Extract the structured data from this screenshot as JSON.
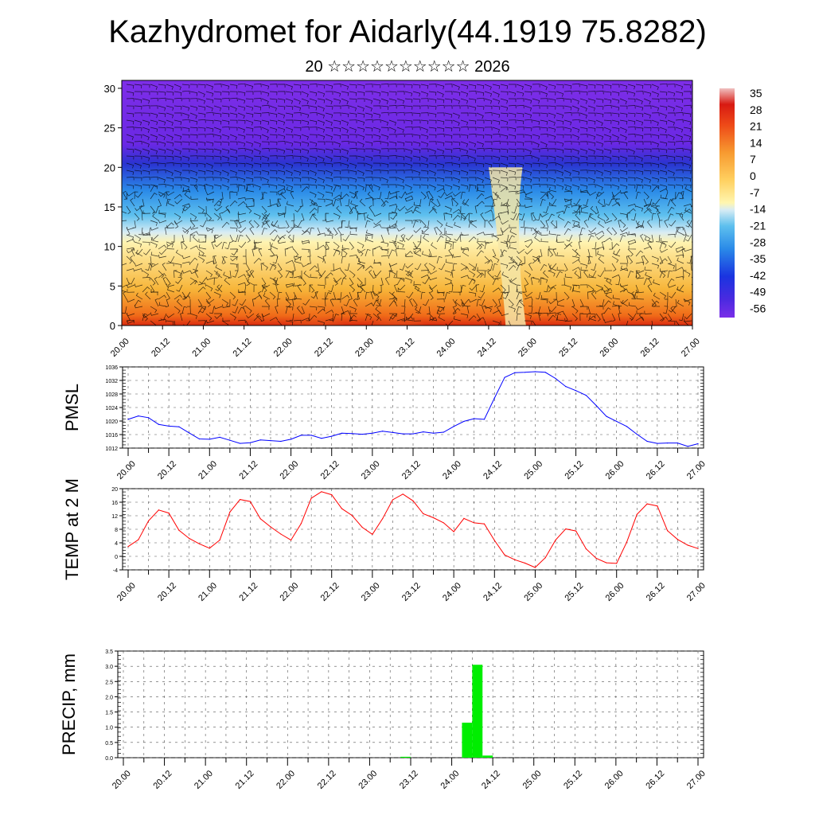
{
  "title": "Kazhydromet for Aidarly(44.1919 75.8282)",
  "subtitle": "20 ☆☆☆☆☆☆☆☆☆☆ 2026",
  "time_ticks": [
    "20.00",
    "20.12",
    "21.00",
    "21.12",
    "22.00",
    "22.12",
    "23.00",
    "23.12",
    "24.00",
    "24.12",
    "25.00",
    "25.12",
    "26.00",
    "26.12",
    "27.00"
  ],
  "colorbar": {
    "labels": [
      "35",
      "28",
      "21",
      "14",
      "7",
      "0",
      "-7",
      "-14",
      "-21",
      "-28",
      "-35",
      "-42",
      "-49",
      "-56"
    ]
  },
  "chart_data": [
    {
      "type": "heatmap",
      "name": "Temperature and wind cross-section",
      "xlabel": "",
      "ylabel": "",
      "x_ticks": [
        "20.00",
        "20.12",
        "21.00",
        "21.12",
        "22.00",
        "22.12",
        "23.00",
        "23.12",
        "24.00",
        "24.12",
        "25.00",
        "25.12",
        "26.00",
        "26.12",
        "27.00"
      ],
      "y_ticks": [
        "0",
        "5",
        "10",
        "15",
        "20",
        "25",
        "30"
      ],
      "ylim": [
        0,
        31
      ],
      "xlim": [
        0,
        168
      ],
      "legend": "colorbar right",
      "palette": [
        "#ff1a1a",
        "#ff7a1a",
        "#ffc24a",
        "#fff6b0",
        "#a8d8f0",
        "#2aa8e8",
        "#1a4ae0",
        "#6a1ae8",
        "#8a2be2"
      ],
      "surface_warm_maxima_hours": [
        57,
        81,
        139
      ]
    },
    {
      "type": "line",
      "name": "PMSL",
      "ylabel": "PMSL",
      "color": "#0000ff",
      "ylim": [
        1012,
        1036
      ],
      "y_ticks": [
        "1036",
        "1032",
        "1028",
        "1024",
        "1020",
        "1016",
        "1012"
      ],
      "x_hours": [
        0,
        3,
        6,
        9,
        12,
        15,
        18,
        21,
        24,
        27,
        30,
        33,
        36,
        39,
        42,
        45,
        48,
        51,
        54,
        57,
        60,
        63,
        66,
        69,
        72,
        75,
        78,
        81,
        84,
        87,
        90,
        93,
        96,
        99,
        102,
        105,
        108,
        111,
        114,
        117,
        120,
        123,
        126,
        129,
        132,
        135,
        138,
        141,
        144,
        147,
        150,
        153,
        156,
        159,
        162,
        165,
        168
      ],
      "values": [
        1020.5,
        1021.5,
        1021,
        1019,
        1018.5,
        1018.3,
        1016.5,
        1014.7,
        1014.6,
        1015.2,
        1014.3,
        1013.4,
        1013.6,
        1014.4,
        1014.2,
        1014,
        1014.6,
        1015.8,
        1015.8,
        1014.9,
        1015.5,
        1016.4,
        1016.3,
        1016.1,
        1016.4,
        1017,
        1016.6,
        1016.2,
        1016.2,
        1016.8,
        1016.4,
        1016.7,
        1018.4,
        1019.9,
        1020.7,
        1020.5,
        1026.8,
        1032.9,
        1034.3,
        1034.4,
        1034.6,
        1034.4,
        1032.6,
        1030.2,
        1029,
        1027.6,
        1024.6,
        1021.4,
        1019.9,
        1018.4,
        1016.1,
        1014,
        1013.4,
        1013.5,
        1013.5,
        1012.5,
        1013.3
      ]
    },
    {
      "type": "line",
      "name": "TEMP at 2 M",
      "ylabel": "TEMP at 2 M",
      "color": "#ff0000",
      "ylim": [
        -4,
        20
      ],
      "y_ticks": [
        "20",
        "16",
        "12",
        "8",
        "4",
        "0",
        "-4"
      ],
      "x_hours": [
        0,
        3,
        6,
        9,
        12,
        15,
        18,
        21,
        24,
        27,
        30,
        33,
        36,
        39,
        42,
        45,
        48,
        51,
        54,
        57,
        60,
        63,
        66,
        69,
        72,
        75,
        78,
        81,
        84,
        87,
        90,
        93,
        96,
        99,
        102,
        105,
        108,
        111,
        114,
        117,
        120,
        123,
        126,
        129,
        132,
        135,
        138,
        141,
        144,
        147,
        150,
        153,
        156,
        159,
        162,
        165,
        168
      ],
      "values": [
        2.9,
        4.9,
        10.5,
        13.7,
        12.8,
        7.7,
        5.3,
        3.7,
        2.4,
        4.8,
        13.1,
        16.8,
        16.2,
        11.1,
        8.7,
        6.6,
        4.8,
        9.7,
        17.2,
        19.1,
        18.2,
        14.1,
        12.1,
        8.6,
        6.5,
        11.1,
        16.7,
        18.4,
        16.4,
        12.6,
        11.4,
        9.9,
        7.3,
        11.2,
        9.9,
        9.6,
        4.7,
        0.4,
        -1,
        -2,
        -3.3,
        -0.4,
        4.8,
        8.1,
        7.5,
        2.2,
        -0.6,
        -1.9,
        -2.1,
        4.2,
        12.4,
        15.5,
        14.9,
        7.6,
        5,
        3.3,
        2.3
      ]
    },
    {
      "type": "bar",
      "name": "PRECIP, mm",
      "ylabel": "PRECIP, mm",
      "color": "#00ee00",
      "ylim": [
        0,
        3.5
      ],
      "y_ticks": [
        "3.5",
        "3.0",
        "2.5",
        "2.0",
        "1.5",
        "1.0",
        "0.5",
        "0.0"
      ],
      "bars": [
        {
          "start_hour": 81,
          "end_hour": 84,
          "value": 0.03
        },
        {
          "start_hour": 99,
          "end_hour": 102,
          "value": 1.15
        },
        {
          "start_hour": 102,
          "end_hour": 105,
          "value": 3.05
        },
        {
          "start_hour": 105,
          "end_hour": 108,
          "value": 0.07
        }
      ]
    }
  ]
}
